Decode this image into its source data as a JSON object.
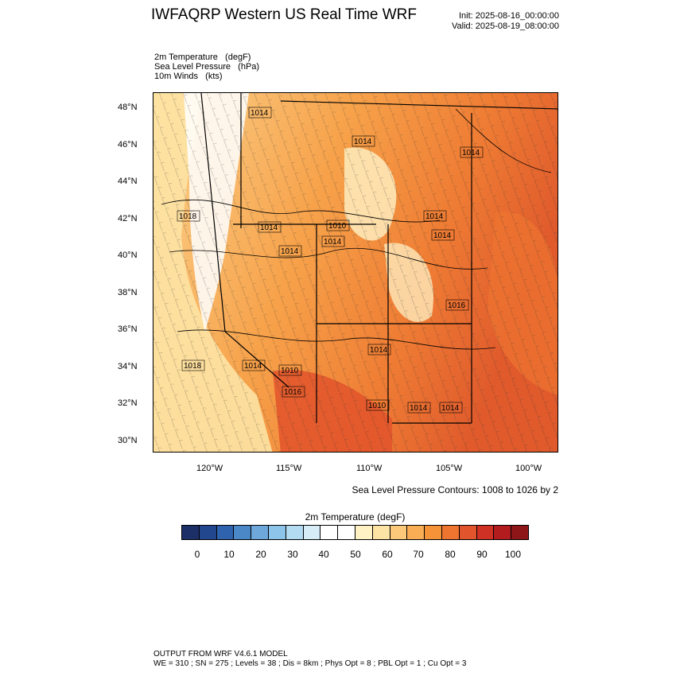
{
  "header": {
    "title": "IWFAQRP Western US Real Time WRF",
    "init": "Init: 2025-08-16_00:00:00",
    "valid": "Valid: 2025-08-19_08:00:00"
  },
  "fields": [
    "2m Temperature   (degF)",
    "Sea Level Pressure   (hPa)",
    "10m Winds   (kts)"
  ],
  "map": {
    "lat_labels": [
      "48°N",
      "46°N",
      "44°N",
      "42°N",
      "40°N",
      "38°N",
      "36°N",
      "34°N",
      "32°N",
      "30°N"
    ],
    "lon_labels": [
      "120°W",
      "115°W",
      "110°W",
      "105°W",
      "100°W"
    ],
    "pressure_labels": [
      "1014",
      "1014",
      "1014",
      "1018",
      "1014",
      "1010",
      "1014",
      "1014",
      "1014",
      "1018",
      "1014",
      "1014",
      "1010",
      "1016",
      "1010",
      "1014",
      "1014",
      "1014",
      "1016"
    ],
    "colors": {
      "hot": "#e04a2c",
      "warm": "#f7a24a",
      "mild": "#fde3a4",
      "cool": "#ffffff"
    }
  },
  "contour_note": "Sea Level Pressure Contours: 1008 to 1026 by 2",
  "colorbar": {
    "title": "2m Temperature  (degF)",
    "colors": [
      "#1c2f66",
      "#23478f",
      "#2f63ae",
      "#4a88c8",
      "#6ea8db",
      "#8dc4ea",
      "#b3dcf3",
      "#d6edf8",
      "#ffffff",
      "#ffffff",
      "#fff2c5",
      "#fde3a4",
      "#fcc97a",
      "#f9ae55",
      "#f59338",
      "#ee7530",
      "#e2542b",
      "#cf3124",
      "#b21c1f",
      "#8e1518"
    ],
    "labels": [
      "0",
      "10",
      "20",
      "30",
      "40",
      "50",
      "60",
      "70",
      "80",
      "90",
      "100"
    ]
  },
  "footer": {
    "line1": "OUTPUT FROM WRF V4.6.1 MODEL",
    "line2": "WE = 310 ; SN = 275 ; Levels = 38 ; Dis = 8km ; Phys Opt = 8 ; PBL Opt = 1 ; Cu Opt = 3"
  }
}
